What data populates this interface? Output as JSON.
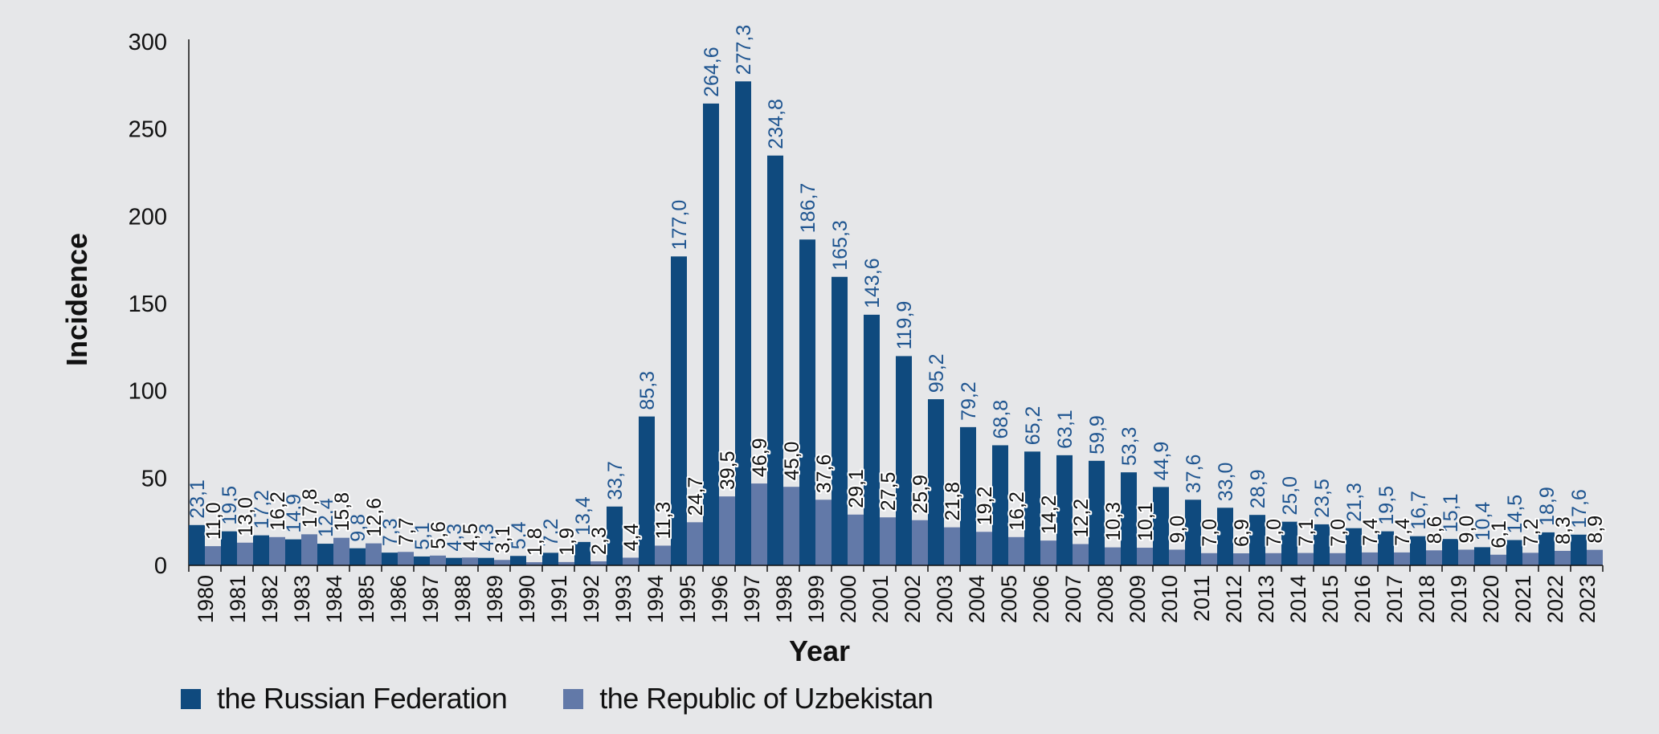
{
  "chart_data": {
    "type": "bar",
    "title": "",
    "xlabel": "Year",
    "ylabel": "Incidence",
    "ylim": [
      0,
      300
    ],
    "yticks": [
      "0",
      "50",
      "100",
      "150",
      "200",
      "250",
      "300"
    ],
    "grid": false,
    "legend_position": "bottom-left",
    "categories": [
      "1980",
      "1981",
      "1982",
      "1983",
      "1984",
      "1985",
      "1986",
      "1987",
      "1988",
      "1989",
      "1990",
      "1991",
      "1992",
      "1993",
      "1994",
      "1995",
      "1996",
      "1997",
      "1998",
      "1999",
      "2000",
      "2001",
      "2002",
      "2003",
      "2004",
      "2005",
      "2006",
      "2007",
      "2008",
      "2009",
      "2010",
      "2011",
      "2012",
      "2013",
      "2014",
      "2015",
      "2016",
      "2017",
      "2018",
      "2019",
      "2020",
      "2021",
      "2022",
      "2023"
    ],
    "series": [
      {
        "name": "the Russian Federation",
        "color": "#0f4a7e",
        "label_color": "#1f5590",
        "values": [
          23.1,
          19.5,
          17.2,
          14.9,
          12.4,
          9.8,
          7.3,
          5.1,
          4.3,
          4.3,
          5.4,
          7.2,
          13.4,
          33.7,
          85.3,
          177.0,
          264.6,
          277.3,
          234.8,
          186.7,
          165.3,
          143.6,
          119.9,
          95.2,
          79.2,
          68.8,
          65.2,
          63.1,
          59.9,
          53.3,
          44.9,
          37.6,
          33.0,
          28.9,
          25.0,
          23.5,
          21.3,
          19.5,
          16.7,
          15.1,
          10.4,
          14.5,
          18.9,
          17.6
        ],
        "labels": [
          "23,1",
          "19,5",
          "17,2",
          "14,9",
          "12,4",
          "9,8",
          "7,3",
          "5,1",
          "4,3",
          "4,3",
          "5,4",
          "7,2",
          "13,4",
          "33,7",
          "85,3",
          "177,0",
          "264,6",
          "277,3",
          "234,8",
          "186,7",
          "165,3",
          "143,6",
          "119,9",
          "95,2",
          "79,2",
          "68,8",
          "65,2",
          "63,1",
          "59,9",
          "53,3",
          "44,9",
          "37,6",
          "33,0",
          "28,9",
          "25,0",
          "23,5",
          "21,3",
          "19,5",
          "16,7",
          "15,1",
          "10,4",
          "14,5",
          "18,9",
          "17,6"
        ]
      },
      {
        "name": "the Republic of Uzbekistan",
        "color": "#6279a8",
        "label_color": "#111111",
        "values": [
          11.0,
          13.0,
          16.2,
          17.8,
          15.8,
          12.6,
          7.7,
          5.6,
          4.5,
          3.1,
          1.8,
          1.9,
          2.3,
          4.4,
          11.3,
          24.7,
          39.5,
          46.9,
          45.0,
          37.6,
          29.1,
          27.5,
          25.9,
          21.8,
          19.2,
          16.2,
          14.2,
          12.2,
          10.3,
          10.1,
          9.0,
          7.0,
          6.9,
          7.0,
          7.1,
          7.0,
          7.4,
          7.4,
          8.6,
          9.0,
          6.1,
          7.2,
          8.3,
          8.9
        ],
        "labels": [
          "11,0",
          "13,0",
          "16,2",
          "17,8",
          "15,8",
          "12,6",
          "7,7",
          "5,6",
          "4,5",
          "3,1",
          "1,8",
          "1,9",
          "2,3",
          "4,4",
          "11,3",
          "24,7",
          "39,5",
          "46,9",
          "45,0",
          "37,6",
          "29,1",
          "27,5",
          "25,9",
          "21,8",
          "19,2",
          "16,2",
          "14,2",
          "12,2",
          "10,3",
          "10,1",
          "9,0",
          "7,0",
          "6,9",
          "7,0",
          "7,1",
          "7,0",
          "7,4",
          "7,4",
          "8,6",
          "9,0",
          "6,1",
          "7,2",
          "8,3",
          "8,9"
        ]
      }
    ]
  },
  "colors": {
    "background": "#e6e7e9",
    "axis": "#111111"
  }
}
